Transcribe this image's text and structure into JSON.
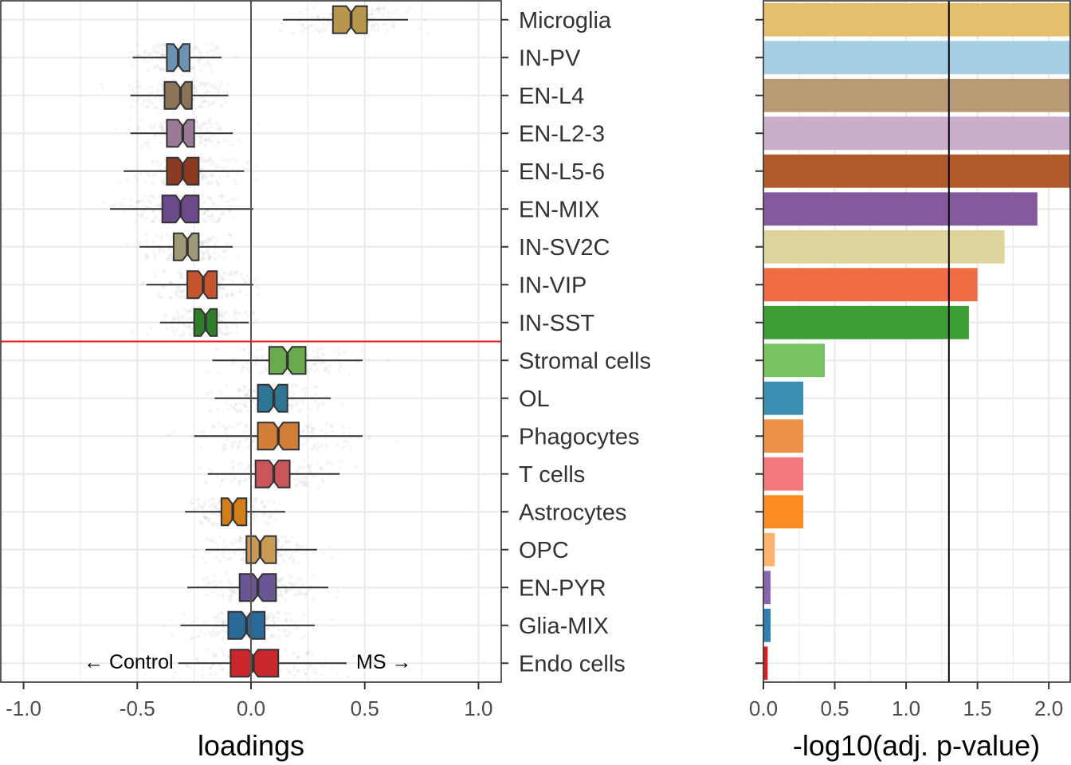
{
  "chart_data": [
    {
      "type": "boxplot",
      "xlabel": "loadings",
      "xlim": [
        -1.1,
        1.1
      ],
      "xticks": [
        -1.0,
        -0.5,
        0.0,
        0.5,
        1.0
      ],
      "xtick_labels": [
        "-1.0",
        "-0.5",
        "0.0",
        "0.5",
        "1.0"
      ],
      "grid": true,
      "vline": 0.0,
      "threshold_between": [
        "IN-SST",
        "Stromal cells"
      ],
      "threshold_color": "#e41a1c",
      "annotations": {
        "left": "← Control",
        "right": "MS →"
      },
      "categories": [
        "Microglia",
        "IN-PV",
        "EN-L4",
        "EN-L2-3",
        "EN-L5-6",
        "EN-MIX",
        "IN-SV2C",
        "IN-VIP",
        "IN-SST",
        "Stromal cells",
        "OL",
        "Phagocytes",
        "T cells",
        "Astrocytes",
        "OPC",
        "EN-PYR",
        "Glia-MIX",
        "Endo cells"
      ],
      "boxes": [
        {
          "name": "Microglia",
          "min": 0.14,
          "q1": 0.36,
          "median": 0.44,
          "q3": 0.51,
          "max": 0.69,
          "color": "#b8964e"
        },
        {
          "name": "IN-PV",
          "min": -0.52,
          "q1": -0.37,
          "median": -0.32,
          "q3": -0.27,
          "max": -0.13,
          "color": "#6b93b4"
        },
        {
          "name": "EN-L4",
          "min": -0.53,
          "q1": -0.38,
          "median": -0.31,
          "q3": -0.26,
          "max": -0.1,
          "color": "#8a7358"
        },
        {
          "name": "EN-L2-3",
          "min": -0.53,
          "q1": -0.37,
          "median": -0.3,
          "q3": -0.25,
          "max": -0.08,
          "color": "#9a7a96"
        },
        {
          "name": "EN-L5-6",
          "min": -0.56,
          "q1": -0.37,
          "median": -0.3,
          "q3": -0.23,
          "max": -0.03,
          "color": "#8b3a22"
        },
        {
          "name": "EN-MIX",
          "min": -0.62,
          "q1": -0.39,
          "median": -0.31,
          "q3": -0.23,
          "max": 0.01,
          "color": "#6a4a8a"
        },
        {
          "name": "IN-SV2C",
          "min": -0.49,
          "q1": -0.34,
          "median": -0.28,
          "q3": -0.23,
          "max": -0.08,
          "color": "#9e9a78"
        },
        {
          "name": "IN-VIP",
          "min": -0.46,
          "q1": -0.28,
          "median": -0.21,
          "q3": -0.15,
          "max": 0.01,
          "color": "#c4532f"
        },
        {
          "name": "IN-SST",
          "min": -0.4,
          "q1": -0.25,
          "median": -0.2,
          "q3": -0.15,
          "max": -0.01,
          "color": "#2e7d2a"
        },
        {
          "name": "Stromal cells",
          "min": -0.17,
          "q1": 0.08,
          "median": 0.16,
          "q3": 0.24,
          "max": 0.49,
          "color": "#6aaa4e"
        },
        {
          "name": "OL",
          "min": -0.16,
          "q1": 0.03,
          "median": 0.1,
          "q3": 0.16,
          "max": 0.35,
          "color": "#2e7693"
        },
        {
          "name": "Phagocytes",
          "min": -0.25,
          "q1": 0.03,
          "median": 0.12,
          "q3": 0.21,
          "max": 0.49,
          "color": "#d27d38"
        },
        {
          "name": "T cells",
          "min": -0.19,
          "q1": 0.02,
          "median": 0.1,
          "q3": 0.17,
          "max": 0.39,
          "color": "#c9565b"
        },
        {
          "name": "Astrocytes",
          "min": -0.29,
          "q1": -0.13,
          "median": -0.08,
          "q3": -0.02,
          "max": 0.15,
          "color": "#d17e1b"
        },
        {
          "name": "OPC",
          "min": -0.2,
          "q1": -0.02,
          "median": 0.04,
          "q3": 0.11,
          "max": 0.29,
          "color": "#c89a55"
        },
        {
          "name": "EN-PYR",
          "min": -0.28,
          "q1": -0.05,
          "median": 0.03,
          "q3": 0.11,
          "max": 0.34,
          "color": "#6a5595"
        },
        {
          "name": "Glia-MIX",
          "min": -0.31,
          "q1": -0.1,
          "median": -0.02,
          "q3": 0.06,
          "max": 0.28,
          "color": "#2a6a98"
        },
        {
          "name": "Endo cells",
          "min": -0.32,
          "q1": -0.09,
          "median": 0.01,
          "q3": 0.12,
          "max": 0.42,
          "color": "#c8282b"
        }
      ]
    },
    {
      "type": "bar",
      "orientation": "horizontal",
      "xlabel": "-log10(adj. p-value)",
      "xlim": [
        0,
        2.15
      ],
      "xticks": [
        0.0,
        0.5,
        1.0,
        1.5,
        2.0
      ],
      "xtick_labels": [
        "0.0",
        "0.5",
        "1.0",
        "1.5",
        "2.0"
      ],
      "grid": true,
      "vline": 1.3,
      "categories": [
        "Microglia",
        "IN-PV",
        "EN-L4",
        "EN-L2-3",
        "EN-L5-6",
        "EN-MIX",
        "IN-SV2C",
        "IN-VIP",
        "IN-SST",
        "Stromal cells",
        "OL",
        "Phagocytes",
        "T cells",
        "Astrocytes",
        "OPC",
        "EN-PYR",
        "Glia-MIX",
        "Endo cells"
      ],
      "values": [
        2.15,
        2.15,
        2.15,
        2.15,
        2.15,
        1.92,
        1.69,
        1.5,
        1.44,
        0.43,
        0.28,
        0.28,
        0.28,
        0.28,
        0.08,
        0.05,
        0.05,
        0.03
      ],
      "colors": [
        "#e3bf6e",
        "#a6cee3",
        "#b89a74",
        "#cbaecb",
        "#b15928",
        "#845a9d",
        "#ddd59b",
        "#f06c45",
        "#3da035",
        "#78c35f",
        "#3b8fb0",
        "#ec904a",
        "#f27a7f",
        "#fd8d23",
        "#fdb36b",
        "#8a64b2",
        "#2f81b5",
        "#e31a1c"
      ]
    }
  ]
}
